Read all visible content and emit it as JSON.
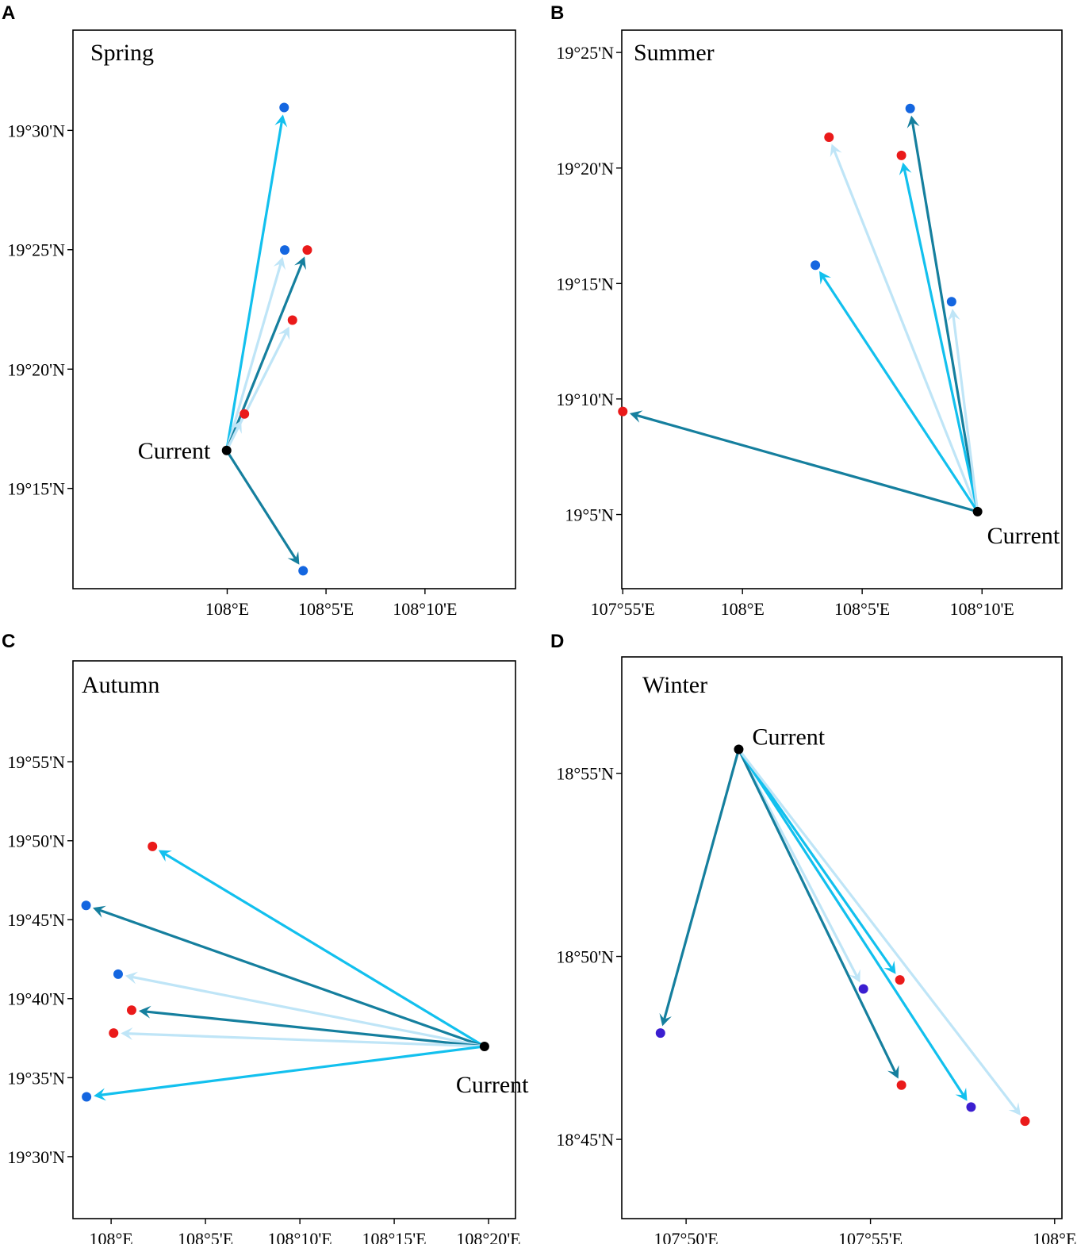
{
  "colors": {
    "dark_teal": "#157f9e",
    "cyan": "#12c0ee",
    "light_blue": "#bfe5f7",
    "dot_blue": "#1466e0",
    "dot_red": "#ea1a1a",
    "dot_purple": "#3b1ed0",
    "current": "#000000"
  },
  "chart_data": [
    {
      "type": "vector-map",
      "panel": "A",
      "title": "Spring",
      "xlabel": "",
      "ylabel": "",
      "xlim_deg": [
        107.87,
        108.243
      ],
      "ylim_deg": [
        19.18,
        19.57
      ],
      "x_ticks": [
        {
          "value": 108.0,
          "label": "108°E"
        },
        {
          "value": 108.0833,
          "label": "108°5'E"
        },
        {
          "value": 108.1667,
          "label": "108°10'E"
        }
      ],
      "y_ticks": [
        {
          "value": 19.5,
          "label": "19°30'N"
        },
        {
          "value": 19.4167,
          "label": "19°25'N"
        },
        {
          "value": 19.3333,
          "label": "19°20'N"
        },
        {
          "value": 19.25,
          "label": "19°15'N"
        }
      ],
      "current": {
        "label": "Current",
        "lon": 107.9995,
        "lat": 19.2765
      },
      "destinations": [
        {
          "lon": 108.048,
          "lat": 19.516,
          "color": "dot_blue",
          "arrow": "cyan"
        },
        {
          "lon": 108.0485,
          "lat": 19.4165,
          "color": "dot_blue",
          "arrow": "light_blue"
        },
        {
          "lon": 108.0675,
          "lat": 19.4165,
          "color": "dot_red",
          "arrow": "dark_teal"
        },
        {
          "lon": 108.055,
          "lat": 19.3675,
          "color": "dot_red",
          "arrow": "light_blue"
        },
        {
          "lon": 108.0145,
          "lat": 19.302,
          "color": "dot_red",
          "arrow": "light_blue"
        },
        {
          "lon": 108.064,
          "lat": 19.1925,
          "color": "dot_blue",
          "arrow": "dark_teal"
        }
      ]
    },
    {
      "type": "vector-map",
      "panel": "B",
      "title": "Summer",
      "xlabel": "",
      "ylabel": "",
      "xlim_deg": [
        107.916,
        108.2223
      ],
      "ylim_deg": [
        19.0298,
        19.4328
      ],
      "x_ticks": [
        {
          "value": 107.9167,
          "label": "107°55'E"
        },
        {
          "value": 108.0,
          "label": "108°E"
        },
        {
          "value": 108.0833,
          "label": "108°5'E"
        },
        {
          "value": 108.1667,
          "label": "108°10'E"
        }
      ],
      "y_ticks": [
        {
          "value": 19.4167,
          "label": "19°25'N"
        },
        {
          "value": 19.3333,
          "label": "19°20'N"
        },
        {
          "value": 19.25,
          "label": "19°15'N"
        },
        {
          "value": 19.1667,
          "label": "19°10'N"
        },
        {
          "value": 19.0833,
          "label": "19°5'N"
        }
      ],
      "current": {
        "label": "Current",
        "lon": 108.1636,
        "lat": 19.0854
      },
      "destinations": [
        {
          "lon": 108.1167,
          "lat": 19.3763,
          "color": "dot_blue",
          "arrow": "dark_teal"
        },
        {
          "lon": 108.0602,
          "lat": 19.3555,
          "color": "dot_red",
          "arrow": "light_blue"
        },
        {
          "lon": 108.1106,
          "lat": 19.3424,
          "color": "dot_red",
          "arrow": "cyan"
        },
        {
          "lon": 108.0507,
          "lat": 19.2632,
          "color": "dot_blue",
          "arrow": "cyan"
        },
        {
          "lon": 108.1455,
          "lat": 19.2369,
          "color": "dot_blue",
          "arrow": "light_blue"
        },
        {
          "lon": 107.9167,
          "lat": 19.1577,
          "color": "dot_red",
          "arrow": "dark_teal"
        }
      ]
    },
    {
      "type": "vector-map",
      "panel": "C",
      "title": "Autumn",
      "xlabel": "",
      "ylabel": "",
      "xlim_deg": [
        107.9663,
        108.3571
      ],
      "ylim_deg": [
        19.4346,
        20.0231
      ],
      "x_ticks": [
        {
          "value": 108.0,
          "label": "108°E"
        },
        {
          "value": 108.0833,
          "label": "108°5'E"
        },
        {
          "value": 108.1667,
          "label": "108°10'E"
        },
        {
          "value": 108.25,
          "label": "108°15'E"
        },
        {
          "value": 108.3333,
          "label": "108°20'E"
        }
      ],
      "y_ticks": [
        {
          "value": 19.9167,
          "label": "19°55'N"
        },
        {
          "value": 19.8333,
          "label": "19°50'N"
        },
        {
          "value": 19.75,
          "label": "19°45'N"
        },
        {
          "value": 19.6667,
          "label": "19°40'N"
        },
        {
          "value": 19.5833,
          "label": "19°35'N"
        },
        {
          "value": 19.5,
          "label": "19°30'N"
        }
      ],
      "current": {
        "label": "Current",
        "lon": 108.3297,
        "lat": 19.6163
      },
      "destinations": [
        {
          "lon": 108.0365,
          "lat": 19.8273,
          "color": "dot_red",
          "arrow": "cyan"
        },
        {
          "lon": 107.9779,
          "lat": 19.7651,
          "color": "dot_blue",
          "arrow": "dark_teal"
        },
        {
          "lon": 108.0062,
          "lat": 19.6925,
          "color": "dot_blue",
          "arrow": "light_blue"
        },
        {
          "lon": 108.0181,
          "lat": 19.6546,
          "color": "dot_red",
          "arrow": "dark_teal"
        },
        {
          "lon": 108.0022,
          "lat": 19.6304,
          "color": "dot_red",
          "arrow": "light_blue"
        },
        {
          "lon": 107.9783,
          "lat": 19.5631,
          "color": "dot_blue",
          "arrow": "cyan"
        }
      ]
    },
    {
      "type": "vector-map",
      "panel": "D",
      "title": "Winter",
      "xlabel": "",
      "ylabel": "",
      "xlim_deg": [
        107.8042,
        108.0033
      ],
      "ylim_deg": [
        18.7139,
        18.9697
      ],
      "x_ticks": [
        {
          "value": 107.8333,
          "label": "107°50'E"
        },
        {
          "value": 107.9167,
          "label": "107°55'E"
        },
        {
          "value": 108.0,
          "label": "108°E"
        }
      ],
      "y_ticks": [
        {
          "value": 18.9167,
          "label": "18°55'N"
        },
        {
          "value": 18.8333,
          "label": "18°50'N"
        },
        {
          "value": 18.75,
          "label": "18°45'N"
        }
      ],
      "current": {
        "label": "Current",
        "lon": 107.8571,
        "lat": 18.9276
      },
      "destinations": [
        {
          "lon": 107.8217,
          "lat": 18.7984,
          "color": "dot_purple",
          "arrow": "dark_teal"
        },
        {
          "lon": 107.9135,
          "lat": 18.8185,
          "color": "dot_purple",
          "arrow": "light_blue"
        },
        {
          "lon": 107.93,
          "lat": 18.8226,
          "color": "dot_red",
          "arrow": "cyan"
        },
        {
          "lon": 107.9307,
          "lat": 18.7747,
          "color": "dot_red",
          "arrow": "dark_teal"
        },
        {
          "lon": 107.9622,
          "lat": 18.7647,
          "color": "dot_purple",
          "arrow": "cyan"
        },
        {
          "lon": 107.9866,
          "lat": 18.7583,
          "color": "dot_red",
          "arrow": "light_blue"
        }
      ]
    }
  ]
}
